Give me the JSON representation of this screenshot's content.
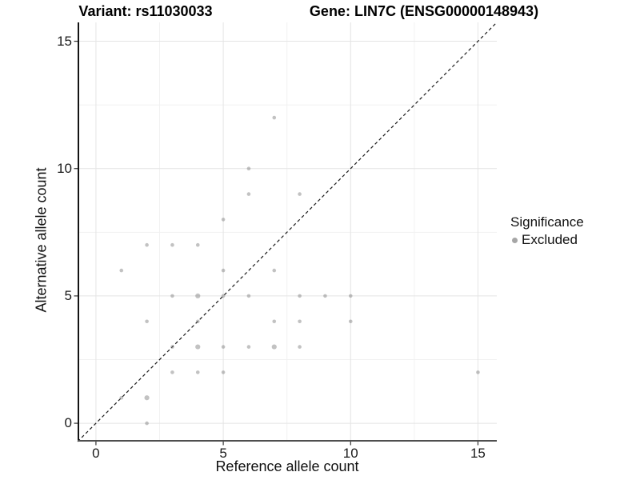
{
  "titles": {
    "variant": "Variant: rs11030033",
    "gene": "Gene: LIN7C (ENSG00000148943)"
  },
  "legend": {
    "title": "Significance",
    "items": [
      {
        "label": "Excluded",
        "dot_color": "#a6a6a6"
      }
    ]
  },
  "style": {
    "point_color": "#787878",
    "point_opacity": 0.45,
    "point_radius": 2.3,
    "point_radius_emphasized": 3.1,
    "grid_major_color": "#e4e4e4",
    "grid_minor_color": "#f1f1f1",
    "axis_line_left_color": "#141414",
    "axis_line_bottom_color": "#4f4f4f",
    "identity_line_color": "#1a1a1a",
    "background": "#ffffff"
  },
  "chart_data": {
    "type": "scatter",
    "title_left": "Variant: rs11030033",
    "title_right": "Gene: LIN7C (ENSG00000148943)",
    "xlabel": "Reference allele count",
    "ylabel": "Alternative allele count",
    "xlim": [
      -0.72,
      15.74
    ],
    "ylim": [
      -0.72,
      15.74
    ],
    "x_ticks": [
      0,
      5,
      10,
      15
    ],
    "y_ticks": [
      0,
      5,
      10,
      15
    ],
    "minor_gridlines": [
      2.5,
      7.5,
      12.5
    ],
    "grid": true,
    "legend_position": "right",
    "identity_line": {
      "present": true,
      "equation": "y = x",
      "style": "dashed"
    },
    "series": [
      {
        "name": "Excluded",
        "points": [
          [
            7,
            12
          ],
          [
            6,
            10
          ],
          [
            6,
            9
          ],
          [
            8,
            9
          ],
          [
            5,
            8
          ],
          [
            2,
            7
          ],
          [
            3,
            7
          ],
          [
            4,
            7
          ],
          [
            1,
            6
          ],
          [
            5,
            6
          ],
          [
            7,
            6
          ],
          [
            3,
            5
          ],
          [
            4,
            5
          ],
          [
            5,
            5
          ],
          [
            6,
            5
          ],
          [
            8,
            5
          ],
          [
            9,
            5
          ],
          [
            10,
            5
          ],
          [
            2,
            4
          ],
          [
            4,
            4
          ],
          [
            7,
            4
          ],
          [
            8,
            4
          ],
          [
            10,
            4
          ],
          [
            3,
            3
          ],
          [
            4,
            3
          ],
          [
            5,
            3
          ],
          [
            6,
            3
          ],
          [
            7,
            3
          ],
          [
            8,
            3
          ],
          [
            3,
            2
          ],
          [
            4,
            2
          ],
          [
            5,
            2
          ],
          [
            15,
            2
          ],
          [
            1,
            1
          ],
          [
            2,
            1
          ],
          [
            2,
            0
          ]
        ],
        "emphasized_points": [
          [
            4,
            5
          ],
          [
            4,
            3
          ],
          [
            7,
            3
          ],
          [
            2,
            1
          ]
        ]
      }
    ]
  }
}
